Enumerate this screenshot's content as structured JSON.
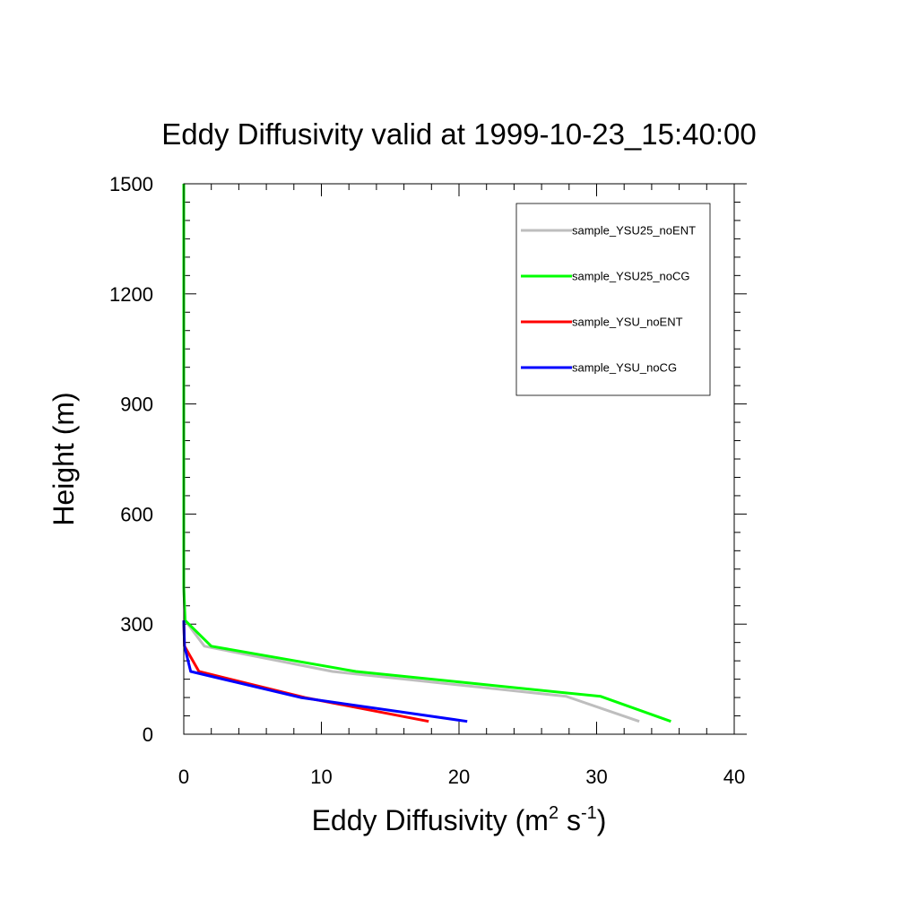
{
  "chart_data": {
    "type": "line",
    "title": "Eddy Diffusivity valid at 1999-10-23_15:40:00",
    "xlabel": {
      "text": "Eddy Diffusivity (m",
      "sup1": "2",
      "mid": " s",
      "sup2": "-1",
      "end": ")"
    },
    "ylabel": "Height (m)",
    "xlim": [
      0,
      40
    ],
    "ylim": [
      0,
      1500
    ],
    "x_ticks": [
      0,
      10,
      20,
      30,
      40
    ],
    "y_ticks": [
      0,
      300,
      600,
      900,
      1200,
      1500
    ],
    "x_tick_labels": [
      "0",
      "10",
      "20",
      "30",
      "40"
    ],
    "y_tick_labels": [
      "0",
      "300",
      "600",
      "900",
      "1200",
      "1500"
    ],
    "legend_position": "top-right",
    "series": [
      {
        "name": "sample_YSU25_noENT",
        "color": "#bebebe",
        "points": [
          [
            33.1,
            35
          ],
          [
            27.8,
            103
          ],
          [
            10.8,
            171
          ],
          [
            1.5,
            240
          ],
          [
            0.1,
            310
          ],
          [
            0.0,
            400
          ],
          [
            0.0,
            1500
          ]
        ]
      },
      {
        "name": "sample_YSU25_noCG",
        "color": "#00ff00",
        "points": [
          [
            35.4,
            35
          ],
          [
            30.3,
            103
          ],
          [
            12.5,
            171
          ],
          [
            2.0,
            240
          ],
          [
            0.1,
            310
          ],
          [
            0.0,
            400
          ],
          [
            0.0,
            1500
          ]
        ]
      },
      {
        "name": "sample_YSU_noENT",
        "color": "#ff0000",
        "points": [
          [
            17.8,
            35
          ],
          [
            8.8,
            100
          ],
          [
            1.1,
            171
          ],
          [
            0.05,
            240
          ],
          [
            0.0,
            310
          ]
        ]
      },
      {
        "name": "sample_YSU_noCG",
        "color": "#0000ff",
        "points": [
          [
            20.6,
            35
          ],
          [
            8.5,
            100
          ],
          [
            0.5,
            171
          ],
          [
            0.05,
            240
          ],
          [
            0.0,
            310
          ]
        ]
      }
    ]
  }
}
